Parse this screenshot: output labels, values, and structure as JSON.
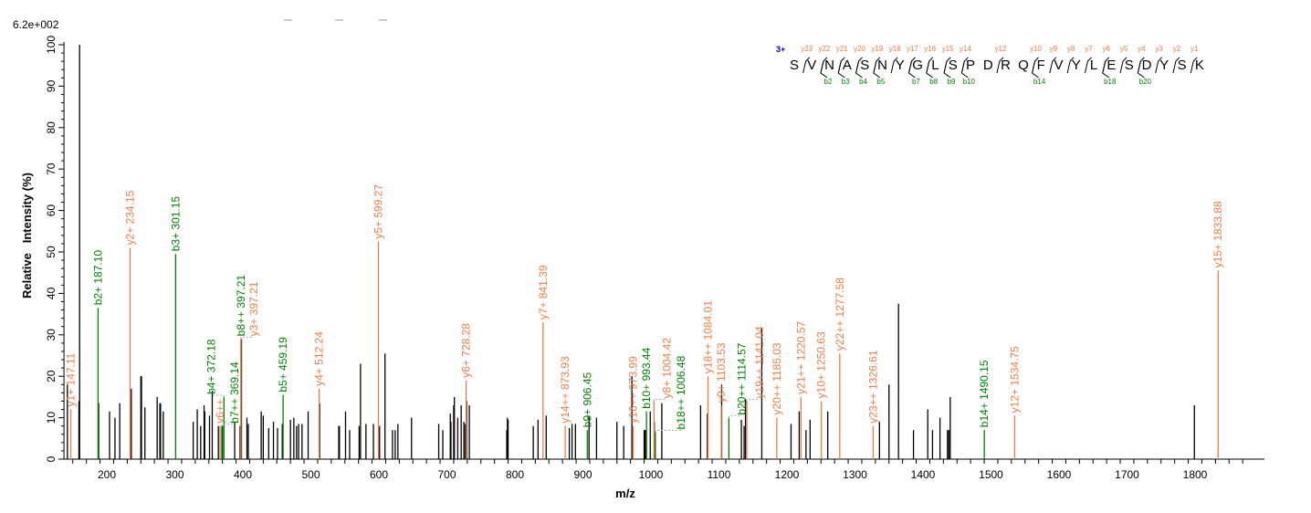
{
  "chart_data": {
    "type": "bar",
    "scale_label": "6.2e+002",
    "xlabel": "m/z",
    "ylabel": "Relative   Intensity (%)",
    "xlim": [
      137,
      1900
    ],
    "ylim": [
      0,
      100
    ],
    "xticks": [
      200,
      300,
      400,
      500,
      600,
      700,
      800,
      900,
      1000,
      1100,
      1200,
      1300,
      1400,
      1500,
      1600,
      1700,
      1800
    ],
    "yticks": [
      0,
      10,
      20,
      30,
      40,
      50,
      60,
      70,
      80,
      90,
      100
    ],
    "grid": false,
    "colors": {
      "unassigned": "#000000",
      "y_ion": "#ee7d45",
      "b_ion": "#008000",
      "charge": "#0000cc"
    },
    "unassigned_peaks": [
      [
        142,
        18
      ],
      [
        159,
        14
      ],
      [
        160,
        100
      ],
      [
        188,
        13.5
      ],
      [
        204,
        11.5
      ],
      [
        212,
        10
      ],
      [
        219,
        13.5
      ],
      [
        236,
        17
      ],
      [
        250,
        20
      ],
      [
        251,
        20
      ],
      [
        256,
        12.5
      ],
      [
        274,
        15
      ],
      [
        278,
        13.5
      ],
      [
        279,
        13.5
      ],
      [
        283,
        11.5
      ],
      [
        327,
        9
      ],
      [
        333,
        12
      ],
      [
        338,
        8
      ],
      [
        343,
        13
      ],
      [
        344,
        11.5
      ],
      [
        351,
        10.5
      ],
      [
        355,
        16.5
      ],
      [
        364,
        8
      ],
      [
        370,
        8
      ],
      [
        388,
        9
      ],
      [
        396,
        8
      ],
      [
        398,
        29
      ],
      [
        406,
        10
      ],
      [
        408,
        8.5
      ],
      [
        427,
        11.5
      ],
      [
        430,
        10.5
      ],
      [
        438,
        7.5
      ],
      [
        445,
        9
      ],
      [
        451,
        7.5
      ],
      [
        458,
        8.5
      ],
      [
        470,
        9.5
      ],
      [
        475,
        10
      ],
      [
        479,
        8
      ],
      [
        482,
        8.5
      ],
      [
        487,
        8.5
      ],
      [
        496,
        11.5
      ],
      [
        513,
        13.5
      ],
      [
        541,
        8
      ],
      [
        542,
        8
      ],
      [
        551,
        11.5
      ],
      [
        557,
        7
      ],
      [
        571,
        8
      ],
      [
        573,
        23
      ],
      [
        581,
        8.5
      ],
      [
        592,
        8.5
      ],
      [
        601,
        8
      ],
      [
        609,
        25.5
      ],
      [
        620,
        7
      ],
      [
        624,
        7
      ],
      [
        628,
        8.5
      ],
      [
        648,
        10
      ],
      [
        688,
        8.5
      ],
      [
        694,
        7
      ],
      [
        705,
        11
      ],
      [
        706,
        9
      ],
      [
        710,
        13
      ],
      [
        711,
        15
      ],
      [
        716,
        10
      ],
      [
        721,
        13
      ],
      [
        725,
        9
      ],
      [
        727,
        8.5
      ],
      [
        729,
        14
      ],
      [
        733,
        13
      ],
      [
        788,
        7
      ],
      [
        789,
        10
      ],
      [
        790,
        9.5
      ],
      [
        827,
        8
      ],
      [
        834,
        9.5
      ],
      [
        846,
        10.5
      ],
      [
        880,
        7.5
      ],
      [
        884,
        8.5
      ],
      [
        889,
        8.5
      ],
      [
        909,
        10.5
      ],
      [
        920,
        10
      ],
      [
        950,
        9
      ],
      [
        960,
        8
      ],
      [
        972,
        20
      ],
      [
        990,
        7
      ],
      [
        991,
        7
      ],
      [
        992,
        7
      ],
      [
        999,
        11.5
      ],
      [
        1005,
        9
      ],
      [
        1016,
        13.5
      ],
      [
        1073,
        13
      ],
      [
        1083,
        11
      ],
      [
        1104,
        18
      ],
      [
        1133,
        9.5
      ],
      [
        1137,
        8
      ],
      [
        1139,
        14.5
      ],
      [
        1163,
        31.5
      ],
      [
        1206,
        8.5
      ],
      [
        1218,
        11.5
      ],
      [
        1228,
        7
      ],
      [
        1234,
        9.5
      ],
      [
        1260,
        11.5
      ],
      [
        1336,
        9
      ],
      [
        1350,
        18
      ],
      [
        1364,
        37.5
      ],
      [
        1386,
        7
      ],
      [
        1407,
        12
      ],
      [
        1414,
        7
      ],
      [
        1425,
        10
      ],
      [
        1436,
        7
      ],
      [
        1438,
        7
      ],
      [
        1440,
        15
      ],
      [
        1799,
        13
      ]
    ],
    "annotated_peaks": [
      {
        "label": "y1+ 147.11",
        "mz": 147.11,
        "intensity": 12,
        "ion": "y"
      },
      {
        "label": "b2+ 187.10",
        "mz": 187.1,
        "intensity": 36.5,
        "ion": "b"
      },
      {
        "label": "y2+ 234.15",
        "mz": 234.15,
        "intensity": 51,
        "ion": "y"
      },
      {
        "label": "b3+ 301.15",
        "mz": 301.15,
        "intensity": 49.5,
        "ion": "b"
      },
      {
        "label": "y6++",
        "mz": 366.5,
        "intensity": 8,
        "ion": "y"
      },
      {
        "label": "b7++ 369.14",
        "mz": 369.14,
        "intensity": 8,
        "ion": "b"
      },
      {
        "label": "b4+ 372.18",
        "mz": 372.18,
        "intensity": 15,
        "ion": "b"
      },
      {
        "label": "b8++ 397.21",
        "mz": 397.21,
        "intensity": 29,
        "ion": "b"
      },
      {
        "label": "y3+ 397.21",
        "mz": 397.21,
        "intensity": 29,
        "ion": "y"
      },
      {
        "label": "b5+ 459.19",
        "mz": 459.19,
        "intensity": 15.5,
        "ion": "b"
      },
      {
        "label": "y4+ 512.24",
        "mz": 512.24,
        "intensity": 17,
        "ion": "y"
      },
      {
        "label": "y5+ 599.27",
        "mz": 599.27,
        "intensity": 52.5,
        "ion": "y"
      },
      {
        "label": "y6+ 728.28",
        "mz": 728.28,
        "intensity": 19,
        "ion": "y"
      },
      {
        "label": "y7+ 841.39",
        "mz": 841.39,
        "intensity": 33,
        "ion": "y"
      },
      {
        "label": "y14++ 873.93",
        "mz": 873.93,
        "intensity": 8,
        "ion": "y"
      },
      {
        "label": "b9+ 906.45",
        "mz": 906.45,
        "intensity": 7,
        "ion": "b"
      },
      {
        "label": "y16++ 973.99",
        "mz": 973.99,
        "intensity": 8,
        "ion": "y"
      },
      {
        "label": "b10+ 993.44",
        "mz": 993.44,
        "intensity": 11.5,
        "ion": "b"
      },
      {
        "label": "y8+ 1004.42",
        "mz": 1004.42,
        "intensity": 14,
        "ion": "y"
      },
      {
        "label": "b18++ 1006.48",
        "mz": 1006.48,
        "intensity": 6.5,
        "ion": "b"
      },
      {
        "label": "y18++ 1084.01",
        "mz": 1084.01,
        "intensity": 20,
        "ion": "y"
      },
      {
        "label": "y9+ 1103.53",
        "mz": 1103.53,
        "intensity": 13,
        "ion": "y"
      },
      {
        "label": "b20++ 1114.57",
        "mz": 1114.57,
        "intensity": 10,
        "ion": "b"
      },
      {
        "label": "y19++ 1141.04",
        "mz": 1141.04,
        "intensity": 14,
        "ion": "y"
      },
      {
        "label": "y20++ 1185.03",
        "mz": 1185.03,
        "intensity": 10,
        "ion": "y"
      },
      {
        "label": "y21++ 1220.57",
        "mz": 1220.57,
        "intensity": 15,
        "ion": "y"
      },
      {
        "label": "y10+ 1250.63",
        "mz": 1250.63,
        "intensity": 14,
        "ion": "y"
      },
      {
        "label": "y22++ 1277.58",
        "mz": 1277.58,
        "intensity": 25.5,
        "ion": "y"
      },
      {
        "label": "y23++ 1326.61",
        "mz": 1326.61,
        "intensity": 8,
        "ion": "y"
      },
      {
        "label": "b14+ 1490.15",
        "mz": 1490.15,
        "intensity": 7,
        "ion": "b"
      },
      {
        "label": "y12+ 1534.75",
        "mz": 1534.75,
        "intensity": 10.5,
        "ion": "y"
      },
      {
        "label": "y15+ 1833.88",
        "mz": 1833.88,
        "intensity": 45.5,
        "ion": "y"
      }
    ],
    "peptide": {
      "charge": "3+",
      "sequence": [
        "S",
        "V",
        "N",
        "A",
        "S",
        "N",
        "Y",
        "G",
        "L",
        "S",
        "P",
        "D",
        "R",
        "Q",
        "F",
        "V",
        "Y",
        "L",
        "E",
        "S",
        "D",
        "Y",
        "S",
        "K"
      ],
      "y_ions": [
        23,
        22,
        21,
        20,
        19,
        18,
        17,
        16,
        15,
        14,
        12,
        10,
        9,
        8,
        7,
        6,
        5,
        4,
        3,
        2,
        1
      ],
      "b_ions": [
        2,
        3,
        4,
        5,
        7,
        8,
        9,
        10,
        14,
        18,
        20
      ]
    }
  }
}
